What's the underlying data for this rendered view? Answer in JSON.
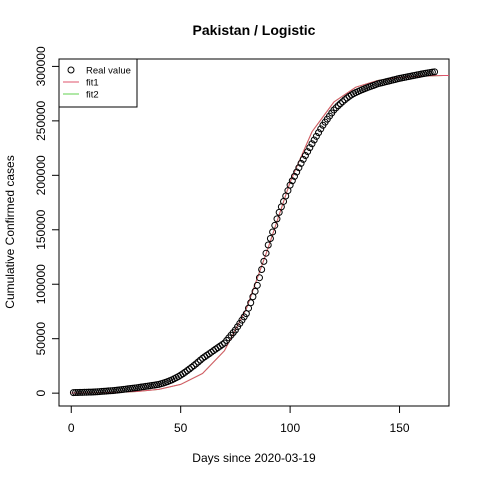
{
  "chart_data": {
    "type": "scatter",
    "title": "Pakistan / Logistic",
    "xlabel": "Days since 2020-03-19",
    "ylabel": "Cumulative Confirmed cases",
    "xlim": [
      -5.6,
      172.6
    ],
    "xticks": [
      0,
      50,
      100,
      150
    ],
    "ylim": [
      -11800,
      306800
    ],
    "yticks": [
      0,
      50000,
      100000,
      150000,
      200000,
      250000,
      300000
    ],
    "legend": "top-left",
    "series": [
      {
        "name": "Real value",
        "mark": "points",
        "color": "#000000",
        "x": [
          1,
          2,
          3,
          4,
          5,
          6,
          7,
          8,
          9,
          10,
          11,
          12,
          13,
          14,
          15,
          16,
          17,
          18,
          19,
          20,
          21,
          22,
          23,
          24,
          25,
          26,
          27,
          28,
          29,
          30,
          31,
          32,
          33,
          34,
          35,
          36,
          37,
          38,
          39,
          40,
          41,
          42,
          43,
          44,
          45,
          46,
          47,
          48,
          49,
          50,
          51,
          52,
          53,
          54,
          55,
          56,
          57,
          58,
          59,
          60,
          61,
          62,
          63,
          64,
          65,
          66,
          67,
          68,
          69,
          70,
          71,
          72,
          73,
          74,
          75,
          76,
          77,
          78,
          79,
          80,
          81,
          82,
          83,
          84,
          85,
          86,
          87,
          88,
          89,
          90,
          91,
          92,
          93,
          94,
          95,
          96,
          97,
          98,
          99,
          100,
          101,
          102,
          103,
          104,
          105,
          106,
          107,
          108,
          109,
          110,
          111,
          112,
          113,
          114,
          115,
          116,
          117,
          118,
          119,
          120,
          121,
          122,
          123,
          124,
          125,
          126,
          127,
          128,
          129,
          130,
          131,
          132,
          133,
          134,
          135,
          136,
          137,
          138,
          139,
          140,
          141,
          142,
          143,
          144,
          145,
          146,
          147,
          148,
          149,
          150,
          151,
          152,
          153,
          154,
          155,
          156,
          157,
          158,
          159,
          160,
          161,
          162,
          163,
          164,
          165,
          166
        ],
        "values": [
          500,
          560,
          610,
          670,
          720,
          780,
          830,
          890,
          940,
          1000,
          1150,
          1300,
          1450,
          1600,
          1750,
          1900,
          2050,
          2200,
          2350,
          2500,
          2750,
          3000,
          3250,
          3500,
          3750,
          4000,
          4250,
          4500,
          4750,
          5000,
          5300,
          5600,
          5900,
          6200,
          6500,
          6800,
          7100,
          7400,
          7700,
          8000,
          8600,
          9200,
          9900,
          10600,
          11400,
          12200,
          13200,
          14200,
          15300,
          16500,
          17800,
          19200,
          20700,
          22200,
          23700,
          25300,
          26900,
          28600,
          30300,
          32000,
          33400,
          34800,
          36200,
          37600,
          39000,
          40400,
          41800,
          43200,
          44600,
          46000,
          48400,
          50800,
          53200,
          55600,
          58000,
          61000,
          64000,
          67000,
          70000,
          73000,
          78000,
          83000,
          88500,
          93500,
          99000,
          106000,
          113500,
          121000,
          128500,
          136000,
          142000,
          148000,
          154000,
          160000,
          166000,
          171000,
          176000,
          181000,
          186000,
          191000,
          195000,
          199000,
          203000,
          207000,
          211000,
          214600,
          218200,
          221800,
          225400,
          229000,
          232400,
          235800,
          239200,
          242600,
          246000,
          248800,
          251600,
          254400,
          257200,
          260000,
          262000,
          264000,
          265800,
          267600,
          269400,
          271000,
          272500,
          273800,
          275000,
          276000,
          276900,
          277800,
          278700,
          279500,
          280300,
          281100,
          281800,
          282500,
          283200,
          284000,
          284500,
          285000,
          285500,
          286000,
          286500,
          287000,
          287500,
          288000,
          288500,
          289000,
          289400,
          289800,
          290200,
          290600,
          291000,
          291400,
          291800,
          292200,
          292600,
          293000,
          293400,
          293700,
          294100,
          294400,
          294700,
          295000
        ]
      },
      {
        "name": "fit1",
        "mark": "line",
        "color": "#DF536B",
        "x": [
          0,
          10,
          20,
          30,
          40,
          50,
          60,
          70,
          80,
          90,
          100,
          110,
          120,
          130,
          140,
          150,
          160,
          170,
          172.6
        ],
        "values": [
          117,
          274,
          640,
          1497,
          3470,
          8010,
          18040,
          38990,
          77450,
          133600,
          193800,
          240000,
          267300,
          280900,
          287100,
          289900,
          291100,
          291600,
          291650
        ]
      },
      {
        "name": "fit2",
        "mark": "line",
        "color": "#61D04F",
        "x": [
          0,
          10,
          20,
          30,
          40,
          50,
          60,
          70,
          80,
          90,
          100,
          110,
          120,
          130,
          140,
          150,
          160,
          170,
          172.6
        ],
        "values": [
          117,
          274,
          640,
          1497,
          3470,
          8010,
          18040,
          38990,
          77450,
          133600,
          193800,
          240000,
          267300,
          280900,
          287100,
          289900,
          291100,
          291600,
          291650
        ]
      }
    ]
  }
}
